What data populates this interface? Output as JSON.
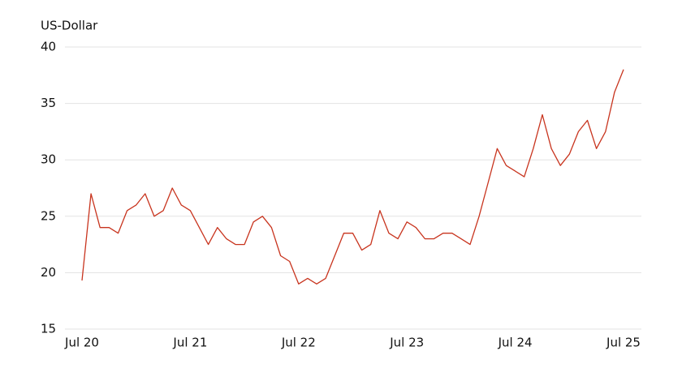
{
  "chart_data": {
    "type": "line",
    "y_label": "US-Dollar",
    "x": [
      "2020-07",
      "2020-08",
      "2020-09",
      "2020-10",
      "2020-11",
      "2020-12",
      "2021-01",
      "2021-02",
      "2021-03",
      "2021-04",
      "2021-05",
      "2021-06",
      "2021-07",
      "2021-08",
      "2021-09",
      "2021-10",
      "2021-11",
      "2021-12",
      "2022-01",
      "2022-02",
      "2022-03",
      "2022-04",
      "2022-05",
      "2022-06",
      "2022-07",
      "2022-08",
      "2022-09",
      "2022-10",
      "2022-11",
      "2022-12",
      "2023-01",
      "2023-02",
      "2023-03",
      "2023-04",
      "2023-05",
      "2023-06",
      "2023-07",
      "2023-08",
      "2023-09",
      "2023-10",
      "2023-11",
      "2023-12",
      "2024-01",
      "2024-02",
      "2024-03",
      "2024-04",
      "2024-05",
      "2024-06",
      "2024-07",
      "2024-08",
      "2024-09",
      "2024-10",
      "2024-11",
      "2024-12",
      "2025-01",
      "2025-02",
      "2025-03",
      "2025-04",
      "2025-05",
      "2025-06",
      "2025-07"
    ],
    "series": [
      {
        "name": "US-Dollar",
        "color": "#c8341e",
        "values": [
          19.3,
          27,
          24,
          24,
          23.5,
          25.5,
          26,
          27,
          25,
          25.5,
          27.5,
          26,
          25.5,
          24,
          22.5,
          24,
          23,
          22.5,
          22.5,
          24.5,
          25,
          24,
          21.5,
          21,
          19,
          19.5,
          19,
          19.5,
          21.5,
          23.5,
          23.5,
          22,
          22.5,
          25.5,
          23.5,
          23,
          24.5,
          24,
          23,
          23,
          23.5,
          23.5,
          23,
          22.5,
          25,
          28,
          31,
          29.5,
          29,
          28.5,
          31,
          34,
          31,
          29.5,
          30.5,
          32.5,
          33.5,
          31,
          32.5,
          36,
          38
        ]
      }
    ],
    "ylim": [
      15,
      40
    ],
    "yticks": [
      15,
      20,
      25,
      30,
      35,
      40
    ],
    "xticks": [
      {
        "value": "2020-07",
        "label": "Jul 20"
      },
      {
        "value": "2021-07",
        "label": "Jul 21"
      },
      {
        "value": "2022-07",
        "label": "Jul 22"
      },
      {
        "value": "2023-07",
        "label": "Jul 23"
      },
      {
        "value": "2024-07",
        "label": "Jul 24"
      },
      {
        "value": "2025-07",
        "label": "Jul 25"
      }
    ],
    "grid": true
  }
}
